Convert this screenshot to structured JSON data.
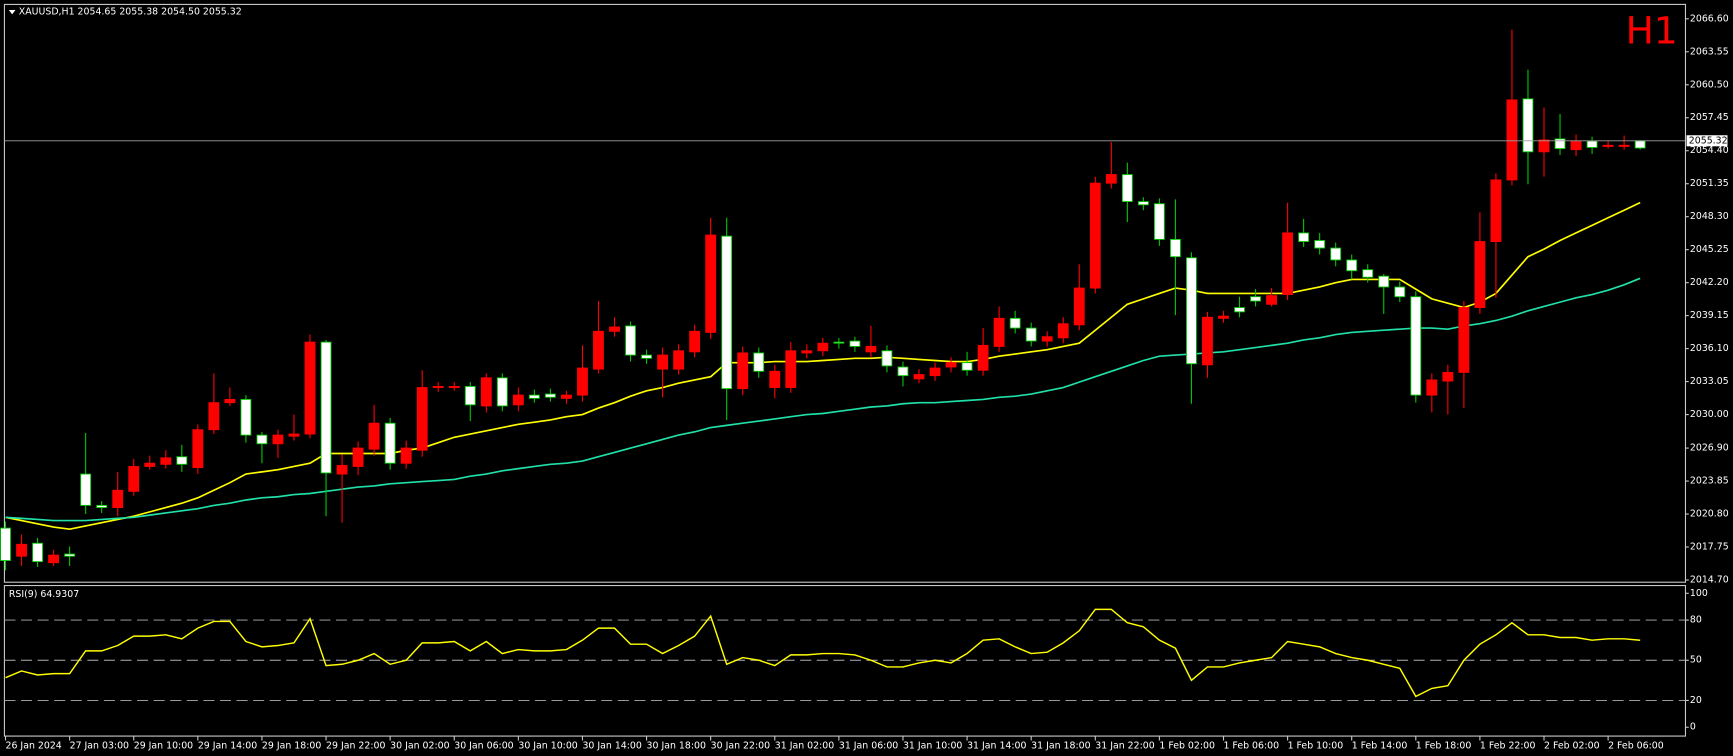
{
  "chart_data": [
    {
      "type": "candlestick",
      "title": "XAUUSD,H1  2054.65 2055.38 2054.50 2055.32",
      "timeframe_label": "H1",
      "up_color": "#ffffff",
      "down_color": "#ff0000",
      "categories": [
        "26 Jan 2024",
        null,
        null,
        null,
        "27 Jan 03:00",
        null,
        null,
        null,
        "29 Jan 10:00",
        null,
        null,
        null,
        "29 Jan 14:00",
        null,
        null,
        null,
        "29 Jan 18:00",
        null,
        null,
        null,
        "29 Jan 22:00",
        null,
        null,
        null,
        "30 Jan 02:00",
        null,
        null,
        null,
        "30 Jan 06:00",
        null,
        null,
        null,
        "30 Jan 10:00",
        null,
        null,
        null,
        "30 Jan 14:00",
        null,
        null,
        null,
        "30 Jan 18:00",
        null,
        null,
        null,
        "30 Jan 22:00",
        null,
        null,
        null,
        "31 Jan 02:00",
        null,
        null,
        null,
        "31 Jan 06:00",
        null,
        null,
        null,
        "31 Jan 10:00",
        null,
        null,
        null,
        "31 Jan 14:00",
        null,
        null,
        null,
        "31 Jan 18:00",
        null,
        null,
        null,
        "31 Jan 22:00",
        null,
        null,
        null,
        "1 Feb 02:00",
        null,
        null,
        null,
        "1 Feb 06:00",
        null,
        null,
        null,
        "1 Feb 10:00",
        null,
        null,
        null,
        "1 Feb 14:00",
        null,
        null,
        null,
        "1 Feb 18:00",
        null,
        null,
        null,
        "1 Feb 22:00",
        null,
        null,
        null,
        "2 Feb 02:00",
        null,
        null,
        null,
        "2 Feb 06:00",
        null,
        null
      ],
      "open": [
        2016.5,
        2018.0,
        2016.4,
        2017.0,
        2016.9,
        2021.6,
        2021.4,
        2023.0,
        2025.2,
        2025.5,
        2026.0,
        2025.4,
        2028.6,
        2031.1,
        2031.4,
        2028.1,
        2027.3,
        2028.1,
        2028.2,
        2036.7,
        2024.6,
        2025.3,
        2026.9,
        2029.2,
        2025.5,
        2026.9,
        2032.5,
        2032.6,
        2032.6,
        2030.9,
        2033.4,
        2030.8,
        2031.8,
        2031.5,
        2031.6,
        2031.8,
        2034.3,
        2037.7,
        2038.1,
        2035.5,
        2035.2,
        2035.5,
        2035.9,
        2037.7,
        2046.6,
        2032.4,
        2035.7,
        2034.0,
        2034.0,
        2035.9,
        2035.9,
        2036.6,
        2036.6,
        2036.3,
        2036.3,
        2034.5,
        2033.6,
        2033.7,
        2034.3,
        2034.8,
        2034.1,
        2036.4,
        2038.9,
        2038.0,
        2036.8,
        2037.2,
        2038.4,
        2041.7,
        2051.4,
        2052.2,
        2049.7,
        2049.4,
        2046.2,
        2044.6,
        2034.7,
        2039.0,
        2039.1,
        2039.5,
        2040.5,
        2041.0,
        2046.8,
        2046.0,
        2045.4,
        2044.3,
        2043.3,
        2042.7,
        2041.8,
        2040.9,
        2031.8,
        2033.2,
        2033.9,
        2039.9,
        2046.0,
        2051.7,
        2059.1,
        2054.3,
        2055.4,
        2054.6,
        2055.3,
        2054.7,
        2054.9,
        2054.9,
        2054.65
      ],
      "high": [
        2020.1,
        2018.9,
        2018.6,
        2017.5,
        2017.8,
        2028.3,
        2022.0,
        2024.7,
        2025.9,
        2026.2,
        2026.7,
        2027.2,
        2029.1,
        2033.8,
        2032.5,
        2031.8,
        2028.4,
        2028.6,
        2030.0,
        2037.4,
        2036.9,
        2026.3,
        2027.5,
        2030.9,
        2029.7,
        2027.6,
        2034.1,
        2033.0,
        2033.0,
        2033.0,
        2033.8,
        2033.8,
        2032.5,
        2032.3,
        2032.4,
        2032.2,
        2036.4,
        2040.5,
        2039.0,
        2038.6,
        2036.0,
        2036.2,
        2036.5,
        2038.3,
        2048.2,
        2048.2,
        2036.3,
        2036.2,
        2034.6,
        2036.7,
        2036.5,
        2037.1,
        2037.1,
        2037.2,
        2038.2,
        2036.4,
        2034.9,
        2034.2,
        2034.8,
        2035.3,
        2035.8,
        2038.0,
        2040.0,
        2039.6,
        2038.5,
        2037.7,
        2039.0,
        2043.9,
        2052.0,
        2055.2,
        2053.3,
        2050.1,
        2050.0,
        2049.9,
        2045.0,
        2039.5,
        2039.6,
        2040.9,
        2041.6,
        2041.7,
        2049.6,
        2048.1,
        2046.8,
        2045.9,
        2044.8,
        2043.9,
        2043.0,
        2042.3,
        2041.4,
        2033.8,
        2034.6,
        2040.5,
        2048.7,
        2052.3,
        2065.6,
        2061.9,
        2058.4,
        2057.8,
        2055.9,
        2055.7,
        2055.3,
        2055.8,
        2055.38
      ],
      "low": [
        2015.6,
        2016.0,
        2015.9,
        2016.0,
        2016.0,
        2020.8,
        2020.9,
        2020.6,
        2022.5,
        2024.9,
        2025.0,
        2024.7,
        2024.5,
        2028.2,
        2030.8,
        2027.4,
        2025.5,
        2026.0,
        2027.6,
        2027.8,
        2020.6,
        2020.0,
        2024.4,
        2026.2,
        2024.9,
        2025.0,
        2026.1,
        2032.1,
        2032.2,
        2029.4,
        2030.2,
        2030.3,
        2030.3,
        2031.1,
        2031.2,
        2031.0,
        2031.2,
        2033.8,
        2037.2,
        2034.9,
        2034.7,
        2031.6,
        2033.7,
        2035.3,
        2037.0,
        2029.5,
        2031.8,
        2033.4,
        2031.5,
        2032.0,
        2035.2,
        2035.4,
        2036.1,
        2035.8,
        2035.3,
        2033.9,
        2032.6,
        2032.9,
        2033.1,
        2033.9,
        2033.6,
        2033.6,
        2035.8,
        2037.5,
        2036.3,
        2036.3,
        2036.6,
        2037.8,
        2041.2,
        2050.9,
        2047.8,
        2048.9,
        2045.6,
        2039.2,
        2031.0,
        2033.4,
        2038.5,
        2039.0,
        2040.0,
        2040.0,
        2040.6,
        2045.5,
        2044.8,
        2043.7,
        2042.5,
        2042.2,
        2039.3,
        2040.4,
        2031.1,
        2030.2,
        2030.0,
        2030.6,
        2039.3,
        2040.8,
        2051.2,
        2051.3,
        2052.0,
        2054.0,
        2053.9,
        2054.1,
        2054.6,
        2054.5,
        2054.5
      ],
      "close": [
        2019.5,
        2016.9,
        2018.1,
        2016.3,
        2017.1,
        2024.5,
        2021.6,
        2021.4,
        2022.9,
        2025.2,
        2025.4,
        2026.1,
        2025.1,
        2028.6,
        2031.1,
        2031.4,
        2028.1,
        2027.3,
        2028.0,
        2028.2,
        2036.7,
        2024.5,
        2025.2,
        2026.8,
        2029.2,
        2025.5,
        2026.7,
        2032.5,
        2032.5,
        2032.6,
        2030.8,
        2033.4,
        2030.9,
        2031.8,
        2031.9,
        2031.5,
        2031.8,
        2034.2,
        2037.7,
        2038.2,
        2035.5,
        2034.2,
        2034.2,
        2035.8,
        2037.6,
        2046.5,
        2032.4,
        2035.7,
        2032.5,
        2032.5,
        2035.7,
        2035.9,
        2036.7,
        2036.8,
        2035.8,
        2035.9,
        2034.4,
        2033.3,
        2033.6,
        2034.4,
        2034.8,
        2034.1,
        2036.3,
        2038.9,
        2038.0,
        2036.8,
        2037.1,
        2038.3,
        2041.7,
        2051.4,
        2052.2,
        2049.7,
        2049.5,
        2046.2,
        2044.5,
        2034.6,
        2038.9,
        2039.9,
        2040.9,
        2040.2,
        2041.1,
        2046.8,
        2046.1,
        2045.4,
        2044.3,
        2043.4,
        2042.8,
        2041.8,
        2040.9,
        2031.8,
        2033.1,
        2033.9,
        2039.9,
        2046.0,
        2051.7,
        2059.2,
        2054.3,
        2055.5,
        2054.5,
        2055.3,
        2054.8,
        2054.8,
        2055.32
      ],
      "series": [
        {
          "color": "#ffff00",
          "values": [
            2020.5,
            2020.2,
            2019.9,
            2019.6,
            2019.4,
            2019.7,
            2020.0,
            2020.3,
            2020.6,
            2021.0,
            2021.4,
            2021.8,
            2022.3,
            2023.0,
            2023.7,
            2024.5,
            2024.7,
            2024.9,
            2025.2,
            2025.5,
            2026.4,
            2026.4,
            2026.4,
            2026.4,
            2026.4,
            2026.7,
            2026.9,
            2027.4,
            2027.9,
            2028.2,
            2028.5,
            2028.8,
            2029.1,
            2029.3,
            2029.5,
            2029.8,
            2030.0,
            2030.6,
            2031.1,
            2031.7,
            2032.2,
            2032.5,
            2032.9,
            2033.2,
            2033.5,
            2034.8,
            2034.8,
            2034.8,
            2034.9,
            2034.9,
            2034.9,
            2035.0,
            2035.1,
            2035.2,
            2035.2,
            2035.3,
            2035.2,
            2035.1,
            2035.0,
            2034.9,
            2034.9,
            2035.1,
            2035.4,
            2035.6,
            2035.8,
            2036.0,
            2036.3,
            2036.6,
            2037.8,
            2039.0,
            2040.2,
            2040.7,
            2041.2,
            2041.7,
            2041.5,
            2041.2,
            2041.2,
            2041.2,
            2041.2,
            2041.2,
            2041.2,
            2041.5,
            2041.8,
            2042.2,
            2042.5,
            2042.5,
            2042.5,
            2042.5,
            2041.6,
            2040.7,
            2040.3,
            2039.9,
            2040.4,
            2041.2,
            2042.9,
            2044.6,
            2045.3,
            2046.1,
            2046.8,
            2047.5,
            2048.2,
            2048.9,
            2049.6
          ]
        },
        {
          "color": "#20e0a8",
          "values": [
            2020.5,
            2020.4,
            2020.3,
            2020.2,
            2020.2,
            2020.2,
            2020.3,
            2020.4,
            2020.5,
            2020.7,
            2020.9,
            2021.1,
            2021.3,
            2021.6,
            2021.8,
            2022.1,
            2022.3,
            2022.4,
            2022.6,
            2022.7,
            2022.9,
            2023.1,
            2023.3,
            2023.4,
            2023.6,
            2023.7,
            2023.8,
            2023.9,
            2024.0,
            2024.3,
            2024.5,
            2024.8,
            2025.0,
            2025.2,
            2025.4,
            2025.5,
            2025.7,
            2026.1,
            2026.5,
            2026.9,
            2027.3,
            2027.7,
            2028.1,
            2028.4,
            2028.8,
            2029.0,
            2029.2,
            2029.4,
            2029.6,
            2029.8,
            2030.0,
            2030.1,
            2030.3,
            2030.5,
            2030.7,
            2030.8,
            2031.0,
            2031.1,
            2031.1,
            2031.2,
            2031.3,
            2031.4,
            2031.6,
            2031.7,
            2031.9,
            2032.2,
            2032.5,
            2033.0,
            2033.5,
            2034.0,
            2034.5,
            2035.0,
            2035.4,
            2035.5,
            2035.6,
            2035.7,
            2035.8,
            2036.0,
            2036.2,
            2036.4,
            2036.6,
            2036.9,
            2037.1,
            2037.4,
            2037.6,
            2037.7,
            2037.8,
            2037.9,
            2038.0,
            2038.0,
            2037.9,
            2038.2,
            2038.4,
            2038.7,
            2039.1,
            2039.6,
            2040.0,
            2040.4,
            2040.8,
            2041.1,
            2041.5,
            2042.0,
            2042.6
          ]
        }
      ],
      "last_price": 2055.32,
      "ylim": [
        2014.7,
        2066.6
      ],
      "yticks": [
        {
          "value": 2014.7,
          "label": "2014.70"
        },
        {
          "value": 2017.75,
          "label": "2017.75"
        },
        {
          "value": 2020.8,
          "label": "2020.80"
        },
        {
          "value": 2023.85,
          "label": "2023.85"
        },
        {
          "value": 2026.9,
          "label": "2026.90"
        },
        {
          "value": 2030,
          "label": "2030.00"
        },
        {
          "value": 2033.05,
          "label": "2033.05"
        },
        {
          "value": 2036.1,
          "label": "2036.10"
        },
        {
          "value": 2039.15,
          "label": "2039.15"
        },
        {
          "value": 2042.2,
          "label": "2042.20"
        },
        {
          "value": 2045.25,
          "label": "2045.25"
        },
        {
          "value": 2048.3,
          "label": "2048.30"
        },
        {
          "value": 2051.35,
          "label": "2051.35"
        },
        {
          "value": 2054.4,
          "label": "2054.40"
        },
        {
          "value": 2057.45,
          "label": "2057.45"
        },
        {
          "value": 2060.5,
          "label": "2060.50"
        },
        {
          "value": 2063.55,
          "label": "2063.55"
        },
        {
          "value": 2066.6,
          "label": "2066.60"
        }
      ]
    },
    {
      "type": "line",
      "title": "RSI(9) 64.9307",
      "color": "#ffff00",
      "values": [
        37,
        42,
        39,
        40,
        40,
        57,
        57,
        61,
        68,
        68,
        69,
        66,
        74,
        79,
        79,
        64,
        60,
        61,
        63,
        81,
        46,
        47,
        50,
        55,
        47,
        50,
        63,
        63,
        64,
        57,
        64,
        55,
        58,
        57,
        57,
        58,
        65,
        74,
        74,
        62,
        62,
        55,
        61,
        68,
        83,
        47,
        52,
        50,
        46,
        54,
        54,
        55,
        55,
        54,
        50,
        45,
        45,
        48,
        50,
        48,
        55,
        65,
        66,
        60,
        55,
        56,
        63,
        72,
        88,
        88,
        78,
        75,
        65,
        59,
        35,
        45,
        45,
        48,
        50,
        52,
        64,
        62,
        60,
        55,
        52,
        50,
        47,
        44,
        23,
        29,
        31,
        50,
        62,
        69,
        78,
        69,
        69,
        67,
        67,
        65,
        66,
        66,
        64.93
      ],
      "levels": [
        20,
        50,
        80
      ],
      "ylim": [
        0,
        100
      ],
      "yticks": [
        0,
        20,
        50,
        80,
        100
      ]
    }
  ]
}
